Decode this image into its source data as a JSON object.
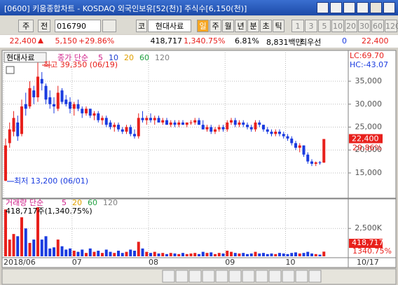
{
  "window": {
    "title": "[0600] 키움종합차트 - KOSDAQ 외국인보유[52(천)] 주식수[6,150(천)]"
  },
  "toolbar": {
    "market": "주",
    "prev": "전",
    "code": "016790",
    "market2": "코",
    "name": "현대사료",
    "periods": [
      "일",
      "주",
      "월",
      "년",
      "분",
      "초",
      "틱"
    ],
    "intervals": [
      "1",
      "3",
      "5",
      "10",
      "20",
      "30",
      "60",
      "120"
    ]
  },
  "info": {
    "price": "22,400",
    "change": "5,150",
    "change_pct": "+29.86%",
    "volume": "418,717",
    "volume_pct": "1,340.75%",
    "turnover": "6.81%",
    "amount": "8,831백만",
    "best": "최우선",
    "best_qty": "0",
    "best_price": "22,400"
  },
  "chart_data": [
    {
      "type": "candlestick",
      "name": "현대사료",
      "ma_label": "종가 단순",
      "ma_items": [
        {
          "label": "5",
          "color": "#d0208a"
        },
        {
          "label": "10",
          "color": "#2040d0"
        },
        {
          "label": "20",
          "color": "#e0a000"
        },
        {
          "label": "60",
          "color": "#20a040"
        },
        {
          "label": "120",
          "color": "#808080"
        }
      ],
      "high_note": "최고 39,350 (06/19)",
      "low_note": "최저 13,200 (06/01)",
      "lc": "LC:69.70",
      "hc": "HC:-43.07",
      "last_label": "22,400",
      "last_pct": "29.86%",
      "up_color": "#e8201c",
      "down_color": "#1a3be0",
      "ylim": [
        9650,
        40500
      ],
      "yticks": [
        {
          "value": 15000,
          "label": "15,000"
        },
        {
          "value": 20000,
          "label": "20,000"
        },
        {
          "value": 25000,
          "label": "25,000"
        },
        {
          "value": 30000,
          "label": "30,000"
        },
        {
          "value": 35000,
          "label": "35,000"
        }
      ],
      "open": [
        13300,
        21500,
        24000,
        26000,
        23500,
        30000,
        29500,
        33000,
        31500,
        35500,
        34000,
        31500,
        30000,
        29000,
        33000,
        31000,
        30500,
        29000,
        30000,
        29000,
        28000,
        29000,
        27500,
        28000,
        26500,
        27000,
        26000,
        25000,
        25500,
        24500,
        24000,
        25000,
        23500,
        23000,
        27000,
        26500,
        27000,
        26500,
        27000,
        26000,
        26500,
        25500,
        26000,
        25500,
        26000,
        25500,
        26000,
        26000,
        26500,
        25500,
        24500,
        25000,
        24000,
        24500,
        25000,
        24500,
        26000,
        26500,
        25500,
        26000,
        25500,
        25000,
        24500,
        26000,
        25500,
        24500,
        24000,
        23500,
        24000,
        23500,
        23000,
        22500,
        21500,
        20500,
        21000,
        19000,
        17500,
        17000,
        17300,
        17250
      ],
      "high": [
        22500,
        26000,
        28500,
        27500,
        31000,
        32500,
        35000,
        34000,
        39350,
        37000,
        34500,
        33000,
        31500,
        34000,
        33500,
        32000,
        31500,
        30500,
        31000,
        29500,
        29500,
        29000,
        28500,
        28500,
        27500,
        27500,
        26500,
        26000,
        26000,
        25000,
        25500,
        25500,
        24500,
        28000,
        28500,
        27500,
        28000,
        27500,
        27500,
        27000,
        27000,
        26500,
        26500,
        26500,
        26500,
        26000,
        26500,
        27000,
        27000,
        26500,
        25500,
        25500,
        25000,
        25500,
        25500,
        26500,
        27000,
        27000,
        26500,
        26500,
        26000,
        25500,
        26500,
        26500,
        25500,
        25000,
        24500,
        24500,
        24500,
        24000,
        23500,
        23000,
        22000,
        21500,
        21000,
        19500,
        18000,
        17500,
        17600,
        22400
      ],
      "low": [
        13200,
        20500,
        23000,
        22000,
        23000,
        27500,
        29000,
        30000,
        30500,
        33000,
        30000,
        29000,
        28000,
        28500,
        30000,
        29500,
        28000,
        27500,
        28500,
        27000,
        27500,
        27000,
        26500,
        26000,
        25500,
        25000,
        24500,
        24000,
        24000,
        23500,
        23500,
        23000,
        22500,
        22500,
        26000,
        25500,
        26000,
        25500,
        26000,
        25500,
        25500,
        25000,
        25000,
        25000,
        25500,
        25000,
        25500,
        25500,
        25500,
        24500,
        24000,
        23500,
        23500,
        24000,
        24000,
        24000,
        25500,
        25000,
        25000,
        25000,
        24500,
        24000,
        24000,
        25000,
        24000,
        23500,
        23000,
        23000,
        23000,
        22500,
        22000,
        21000,
        20000,
        19500,
        18500,
        17000,
        16500,
        16500,
        16800,
        17200
      ],
      "close": [
        21000,
        24500,
        27000,
        23000,
        29500,
        29000,
        33500,
        31500,
        36000,
        34500,
        31000,
        30000,
        29500,
        32500,
        30500,
        30000,
        29000,
        30000,
        29000,
        28000,
        29000,
        27500,
        28000,
        26500,
        27000,
        25500,
        25000,
        25500,
        24500,
        24000,
        25000,
        23500,
        23000,
        27000,
        26500,
        27000,
        26500,
        27000,
        26000,
        26500,
        25500,
        26000,
        25500,
        26000,
        25500,
        26000,
        26000,
        26500,
        25500,
        24500,
        25000,
        24000,
        24500,
        25000,
        24500,
        26000,
        26500,
        25500,
        26000,
        25500,
        25000,
        24500,
        26000,
        25500,
        24500,
        24000,
        23500,
        24000,
        23500,
        23000,
        22500,
        21500,
        20500,
        21000,
        19000,
        17500,
        17000,
        17300,
        17250,
        22400
      ]
    },
    {
      "type": "bar",
      "name": "거래량 단순",
      "ma_items": [
        {
          "label": "5",
          "color": "#d0208a"
        },
        {
          "label": "20",
          "color": "#e0a000"
        },
        {
          "label": "60",
          "color": "#20a040"
        },
        {
          "label": "120",
          "color": "#808080"
        }
      ],
      "volume_note": "418,717주(1,340.75%)",
      "last_label": "418,717",
      "last_pct": "1340.75%",
      "ylim": [
        0,
        4900000
      ],
      "yticks": [
        {
          "value": 2500000,
          "label": "2,500K"
        }
      ],
      "x_end_label": "10/17",
      "categories": [
        "2018/06",
        null,
        null,
        null,
        null,
        null,
        null,
        null,
        null,
        null,
        null,
        null,
        null,
        null,
        null,
        null,
        null,
        "07",
        null,
        null,
        null,
        null,
        null,
        null,
        null,
        null,
        null,
        null,
        null,
        null,
        null,
        null,
        null,
        null,
        null,
        null,
        "08",
        null,
        null,
        null,
        null,
        null,
        null,
        null,
        null,
        null,
        null,
        null,
        null,
        null,
        null,
        null,
        null,
        null,
        null,
        "09",
        null,
        null,
        null,
        null,
        null,
        null,
        null,
        null,
        null,
        null,
        null,
        null,
        null,
        null,
        "10",
        null,
        null,
        null,
        null,
        null,
        null,
        null,
        null,
        null
      ],
      "values": [
        4200000,
        1500000,
        2000000,
        1800000,
        3500000,
        2500000,
        1200000,
        1500000,
        4400000,
        1500000,
        1800000,
        700000,
        800000,
        1500000,
        900000,
        600000,
        700000,
        500000,
        400000,
        600000,
        300000,
        700000,
        400000,
        500000,
        300000,
        600000,
        400000,
        300000,
        500000,
        300000,
        400000,
        600000,
        500000,
        1300000,
        700000,
        400000,
        300000,
        400000,
        250000,
        300000,
        200000,
        300000,
        250000,
        200000,
        300000,
        200000,
        250000,
        300000,
        200000,
        400000,
        300000,
        350000,
        200000,
        300000,
        250000,
        500000,
        400000,
        300000,
        250000,
        300000,
        200000,
        250000,
        400000,
        250000,
        300000,
        200000,
        250000,
        200000,
        300000,
        250000,
        200000,
        300000,
        350000,
        250000,
        300000,
        400000,
        250000,
        200000,
        150000,
        418717
      ]
    }
  ]
}
